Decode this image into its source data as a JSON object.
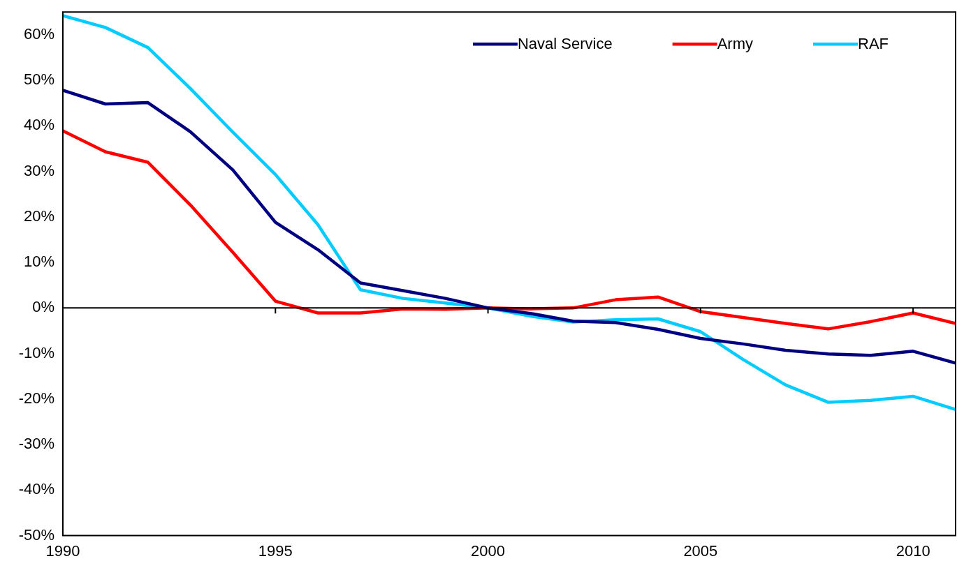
{
  "chart_data": {
    "type": "line",
    "x": [
      1990,
      1991,
      1992,
      1993,
      1994,
      1995,
      1996,
      1997,
      1998,
      1999,
      2000,
      2001,
      2002,
      2003,
      2004,
      2005,
      2006,
      2007,
      2008,
      2009,
      2010,
      2011
    ],
    "series": [
      {
        "name": "Naval Service",
        "color": "#000080",
        "values": [
          47.8,
          44.8,
          45.1,
          38.7,
          30.3,
          18.8,
          12.8,
          5.5,
          3.8,
          2.1,
          0,
          -1.2,
          -2.9,
          -3.2,
          -4.7,
          -6.7,
          -7.9,
          -9.3,
          -10.1,
          -10.4,
          -9.5,
          -12.1
        ]
      },
      {
        "name": "Army",
        "color": "#ff0000",
        "values": [
          38.9,
          34.3,
          32.0,
          22.6,
          12.2,
          1.5,
          -1.1,
          -1.1,
          -0.2,
          -0.3,
          0,
          -0.2,
          0,
          1.8,
          2.4,
          -0.8,
          -2.1,
          -3.4,
          -4.6,
          -3.0,
          -1.1,
          -3.4
        ]
      },
      {
        "name": "RAF",
        "color": "#00ccff",
        "values": [
          64.2,
          61.6,
          57.2,
          48.2,
          38.6,
          29.3,
          18.3,
          4.0,
          2.1,
          1.1,
          0,
          -1.8,
          -3.1,
          -2.6,
          -2.4,
          -5.2,
          -11.3,
          -16.9,
          -20.7,
          -20.3,
          -19.4,
          -22.3
        ]
      }
    ],
    "xlim": [
      1990,
      2011
    ],
    "xticks": [
      1990,
      1995,
      2000,
      2005,
      2010
    ],
    "ylim": [
      -50,
      65
    ],
    "yticks": [
      {
        "value": -50,
        "label": "-50%"
      },
      {
        "value": -40,
        "label": "-40%"
      },
      {
        "value": -30,
        "label": "-30%"
      },
      {
        "value": -20,
        "label": "-20%"
      },
      {
        "value": -10,
        "label": "-10%"
      },
      {
        "value": 0,
        "label": "0%"
      },
      {
        "value": 10,
        "label": "10%"
      },
      {
        "value": 20,
        "label": "20%"
      },
      {
        "value": 30,
        "label": "30%"
      },
      {
        "value": 40,
        "label": "40%"
      },
      {
        "value": 50,
        "label": "50%"
      },
      {
        "value": 60,
        "label": "60%"
      }
    ],
    "ref_lines": [
      {
        "axis": "y",
        "value": 0,
        "color": "#000000"
      }
    ],
    "grid": false,
    "legend": "top right",
    "marker": "none",
    "line_style": "solid"
  }
}
